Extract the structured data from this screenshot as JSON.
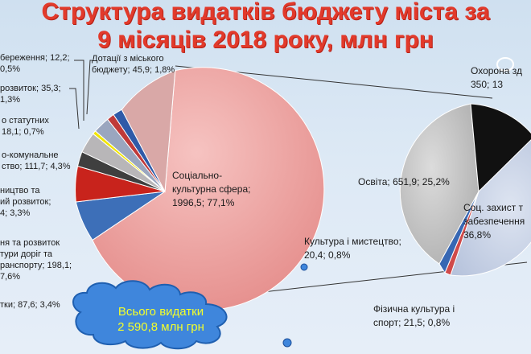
{
  "title": {
    "line1": "Структура видатків бюджету міста за",
    "line2": "9 місяців 2018 року, млн грн"
  },
  "total": "Всього видатки\n2 590,8 млн грн",
  "colors": {
    "title": "#e23a2b",
    "social": "#ef9a98",
    "transport": "#3d6fb8",
    "economy": "#c8231c",
    "construction": "#3f3f3f",
    "housing": "#b8b6b8",
    "oblig": "#f2e600",
    "reserve": "#c03a3a",
    "subsidies": "#2f5aa8",
    "education": "#bdbdbd",
    "health": "#111111",
    "social_protection": "#c3cde2",
    "culture": "#d04a4a",
    "sport": "#3767b3",
    "cloud": "#3f86dc"
  },
  "labels": {
    "reserve": "береження; 12,2;\n0,5%",
    "subsidies": "Дотації з міського\nбюджету; 45,9; 1,8%",
    "economy": "розвиток; 35,3;\n1,3%",
    "oblig": "о статутних\n18,1; 0,7%",
    "housing": "о-комунальне\nство; 111,7; 4,3%",
    "construction": "ництво та\nий розвиток;\n4; 3,3%",
    "transport": "ня та розвиток\nтури доріг та\nранспорту; 198,1;\n7,6%",
    "other": "тки; 87,6; 3,4%",
    "social": "Соціально-\nкультурна сфера;\n1996,5; 77,1%",
    "health": "Охорона зд\n350; 13",
    "education": "Освіта; 651,9; 25,2%",
    "social_protection": "Соц. захист т\nзабезпечення\n36,8%",
    "culture": "Культура і мистецтво;\n20,4; 0,8%",
    "sport": "Фізична культура і\nспорт; 21,5; 0,8%"
  },
  "chart_data": [
    {
      "type": "pie",
      "title": "Структура видатків бюджету міста за 9 місяців 2018 року, млн грн",
      "slices": [
        {
          "label": "Соціально-культурна сфера",
          "value": 1996.5,
          "percent": 77.1
        },
        {
          "label": "…ня та розвиток …тури доріг та …ранспорту",
          "value": 198.1,
          "percent": 7.6
        },
        {
          "label": "…тки",
          "value": 87.6,
          "percent": 3.4
        },
        {
          "label": "…ництво та …ий розвиток",
          "value": null,
          "percent": 3.3
        },
        {
          "label": "…о-комунальне …ство",
          "value": 111.7,
          "percent": 4.3
        },
        {
          "label": "…о статутних",
          "value": 18.1,
          "percent": 0.7
        },
        {
          "label": "…розвиток",
          "value": 35.3,
          "percent": 1.3
        },
        {
          "label": "…береження",
          "value": 12.2,
          "percent": 0.5
        },
        {
          "label": "Дотації з міського бюджету",
          "value": 45.9,
          "percent": 1.8
        }
      ]
    },
    {
      "type": "pie",
      "slices": [
        {
          "label": "Освіта",
          "value": 651.9,
          "percent": 25.2
        },
        {
          "label": "Охорона зд…",
          "value": 350,
          "percent": 13
        },
        {
          "label": "Соц. захист т… забезпечення",
          "value": null,
          "percent": 36.8
        },
        {
          "label": "Культура і мистецтво",
          "value": 20.4,
          "percent": 0.8
        },
        {
          "label": "Фізична культура і спорт",
          "value": 21.5,
          "percent": 0.8
        }
      ]
    }
  ]
}
